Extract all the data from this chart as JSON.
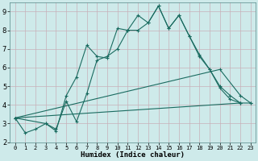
{
  "xlabel": "Humidex (Indice chaleur)",
  "bg_color": "#ceeaea",
  "grid_color": "#c8b0b8",
  "line_color": "#1a6b60",
  "xlim": [
    -0.5,
    23.5
  ],
  "ylim": [
    2,
    9.5
  ],
  "yticks": [
    2,
    3,
    4,
    5,
    6,
    7,
    8,
    9
  ],
  "xticks": [
    0,
    1,
    2,
    3,
    4,
    5,
    6,
    7,
    8,
    9,
    10,
    11,
    12,
    13,
    14,
    15,
    16,
    17,
    18,
    19,
    20,
    21,
    22,
    23
  ],
  "series1_x": [
    0,
    1,
    2,
    3,
    4,
    5,
    6,
    7,
    8,
    9,
    10,
    11,
    12,
    13,
    14,
    15,
    16,
    17,
    18,
    19,
    20,
    21,
    22
  ],
  "series1_y": [
    3.3,
    2.5,
    2.7,
    3.0,
    2.6,
    4.5,
    5.5,
    7.2,
    6.6,
    6.5,
    8.1,
    8.0,
    8.8,
    8.4,
    9.3,
    8.1,
    8.8,
    7.7,
    6.7,
    5.9,
    5.0,
    4.5,
    4.1
  ],
  "series2_x": [
    0,
    3,
    4,
    5,
    6,
    7,
    8,
    9,
    10,
    11,
    12,
    13,
    14,
    15,
    16,
    17,
    18,
    19,
    20,
    21,
    22
  ],
  "series2_y": [
    3.3,
    3.0,
    2.7,
    4.2,
    3.1,
    4.6,
    6.4,
    6.6,
    7.0,
    8.0,
    8.0,
    8.4,
    9.3,
    8.1,
    8.8,
    7.7,
    6.6,
    5.9,
    4.9,
    4.3,
    4.1
  ],
  "series3_x": [
    0,
    22,
    23
  ],
  "series3_y": [
    3.3,
    4.1,
    4.1
  ],
  "series4_x": [
    0,
    20,
    22,
    23
  ],
  "series4_y": [
    3.3,
    5.9,
    4.5,
    4.1
  ]
}
